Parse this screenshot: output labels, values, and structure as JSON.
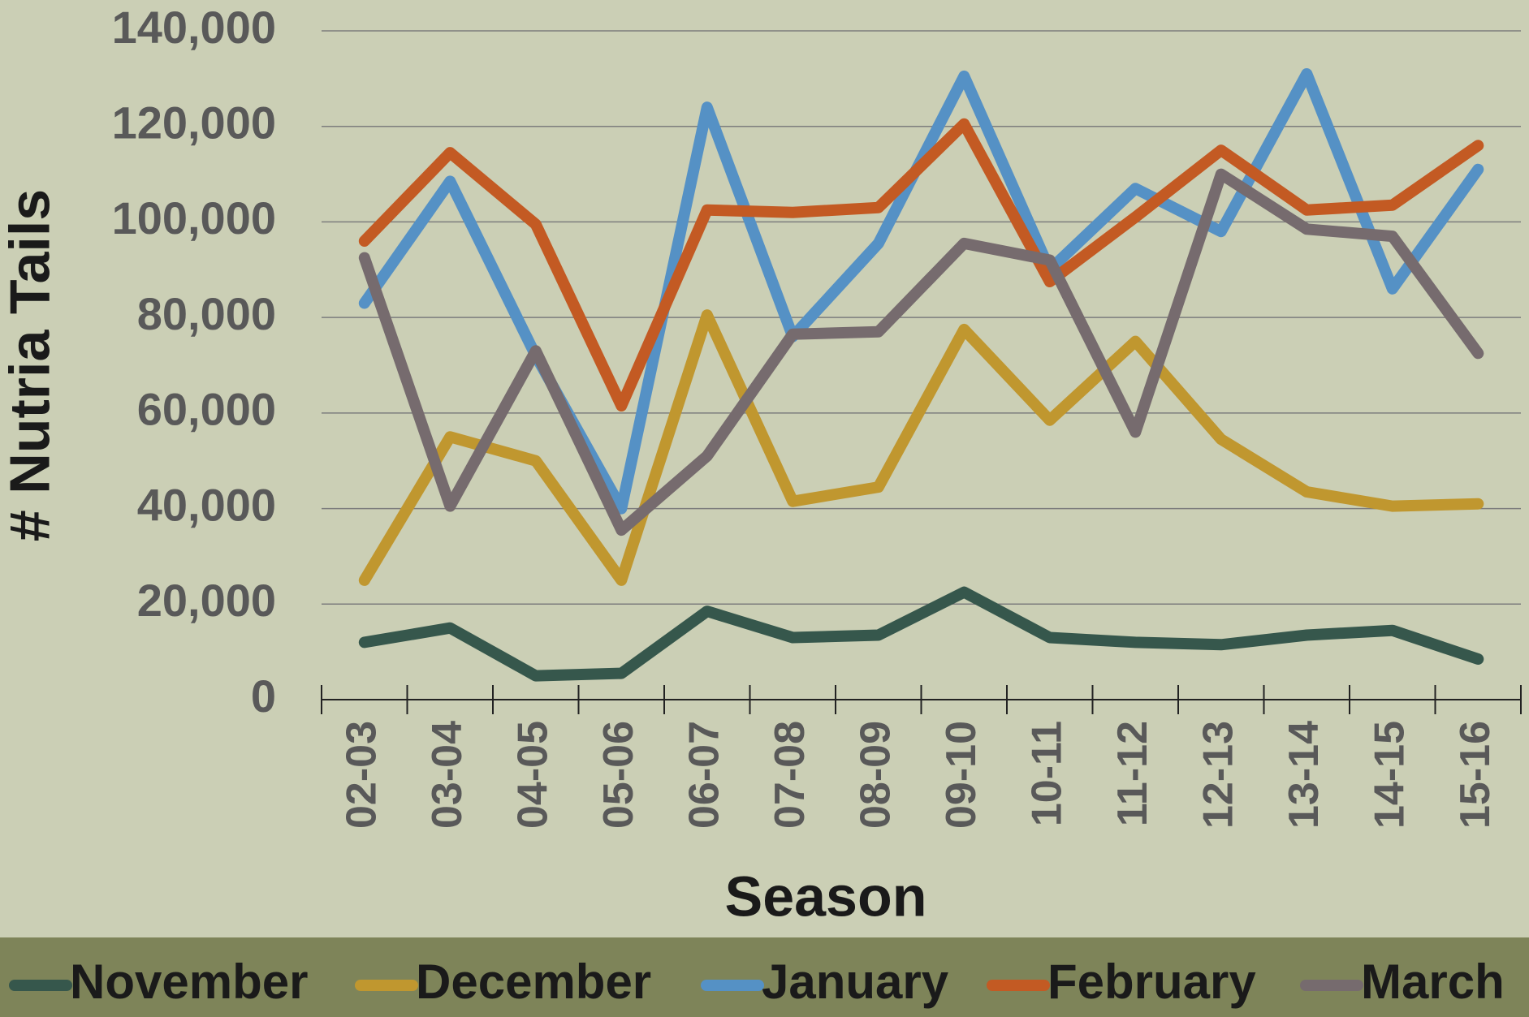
{
  "chart_data": {
    "type": "line",
    "x_label": "Season",
    "y_label": "# Nutria Tails",
    "categories": [
      "02-03",
      "03-04",
      "04-05",
      "05-06",
      "06-07",
      "07-08",
      "08-09",
      "09-10",
      "10-11",
      "11-12",
      "12-13",
      "13-14",
      "14-15",
      "15-16"
    ],
    "series": [
      {
        "name": "November",
        "color": "#36574c",
        "values": [
          12000,
          15000,
          5000,
          5500,
          18500,
          13000,
          13500,
          22500,
          13000,
          12000,
          11500,
          13500,
          14500,
          8500
        ]
      },
      {
        "name": "December",
        "color": "#c0972f",
        "values": [
          25000,
          55000,
          50000,
          25000,
          80500,
          41500,
          44500,
          77500,
          58500,
          75000,
          54500,
          43500,
          40500,
          41000
        ]
      },
      {
        "name": "January",
        "color": "#5591c5",
        "values": [
          83000,
          108500,
          72000,
          40000,
          124000,
          76000,
          95500,
          130500,
          90000,
          107000,
          98000,
          131000,
          86000,
          111000
        ]
      },
      {
        "name": "February",
        "color": "#c35a23",
        "values": [
          96000,
          114500,
          99500,
          61500,
          102500,
          102000,
          103000,
          120500,
          87500,
          101000,
          115000,
          102500,
          103500,
          116000
        ]
      },
      {
        "name": "March",
        "color": "#766b6e",
        "values": [
          92500,
          40500,
          73000,
          35500,
          51000,
          76500,
          77000,
          95500,
          92000,
          56000,
          110000,
          98500,
          97000,
          72500
        ]
      }
    ],
    "ylim": [
      0,
      140000
    ],
    "yticks": [
      0,
      {
        "value": 20000,
        "label": "20,000"
      },
      {
        "value": 40000,
        "label": "40,000"
      },
      {
        "value": 60000,
        "label": "60,000"
      },
      {
        "value": 80000,
        "label": "80,000"
      },
      {
        "value": 100000,
        "label": "100,000"
      },
      {
        "value": 120000,
        "label": "120,000"
      },
      {
        "value": 140000,
        "label": "140,000"
      }
    ],
    "grid": true,
    "legend": "bottom"
  }
}
